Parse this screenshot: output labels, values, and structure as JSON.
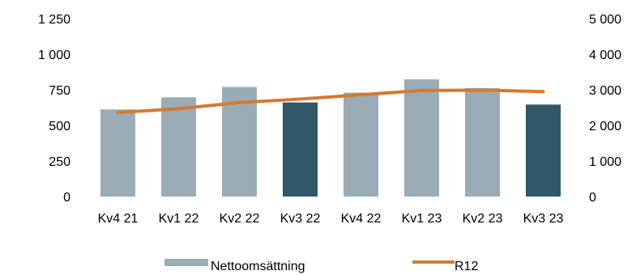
{
  "chart_data": {
    "type": "bar",
    "title": "",
    "xlabel": "",
    "ylabel": "",
    "categories": [
      "Kv4 21",
      "Kv1 22",
      "Kv2 22",
      "Kv3 22",
      "Kv4 22",
      "Kv1 23",
      "Kv2 23",
      "Kv3 23"
    ],
    "series": [
      {
        "name": "Nettoomsättning",
        "type": "bar",
        "axis": "left",
        "values": [
          612,
          697,
          770,
          661,
          730,
          823,
          762,
          646
        ],
        "colors": [
          "#9aadb6",
          "#9aadb6",
          "#9aadb6",
          "#305868",
          "#9aadb6",
          "#9aadb6",
          "#9aadb6",
          "#305868"
        ]
      },
      {
        "name": "R12",
        "type": "line",
        "axis": "right",
        "values": [
          2360,
          2470,
          2640,
          2740,
          2860,
          2980,
          2990,
          2950
        ],
        "color": "#d47a32"
      }
    ],
    "ylim_left": [
      0,
      1250
    ],
    "yticks_left": [
      "0",
      "250",
      "500",
      "750",
      "1 000",
      "1 250"
    ],
    "ylim_right": [
      0,
      5000
    ],
    "yticks_right": [
      "0",
      "1 000",
      "2 000",
      "3 000",
      "4 000",
      "5 000"
    ],
    "grid": false,
    "legend_position": "bottom"
  }
}
